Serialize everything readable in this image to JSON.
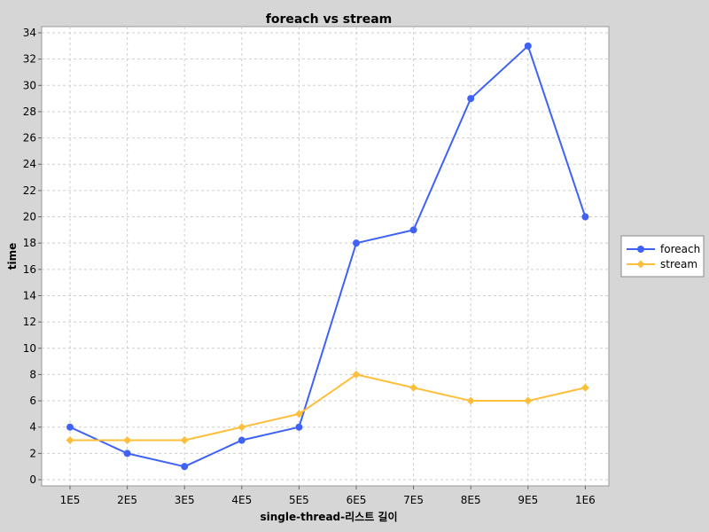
{
  "chart_data": {
    "type": "line",
    "title": "foreach vs stream",
    "xlabel": "single-thread-리스트 길이",
    "ylabel": "time",
    "categories": [
      "1E5",
      "2E5",
      "3E5",
      "4E5",
      "5E5",
      "6E5",
      "7E5",
      "8E5",
      "9E5",
      "1E6"
    ],
    "ylim": [
      0,
      34
    ],
    "yticks": [
      0,
      2,
      4,
      6,
      8,
      10,
      12,
      14,
      16,
      18,
      20,
      22,
      24,
      26,
      28,
      30,
      32,
      34
    ],
    "grid": true,
    "legend_position": "right",
    "series": [
      {
        "name": "foreach",
        "color": "#3f62f5",
        "marker": "circle",
        "values": [
          4,
          2,
          1,
          3,
          4,
          18,
          19,
          29,
          33,
          20
        ]
      },
      {
        "name": "stream",
        "color": "#ffbf3c",
        "marker": "diamond",
        "values": [
          3,
          3,
          3,
          4,
          5,
          8,
          7,
          6,
          6,
          7
        ]
      }
    ]
  }
}
